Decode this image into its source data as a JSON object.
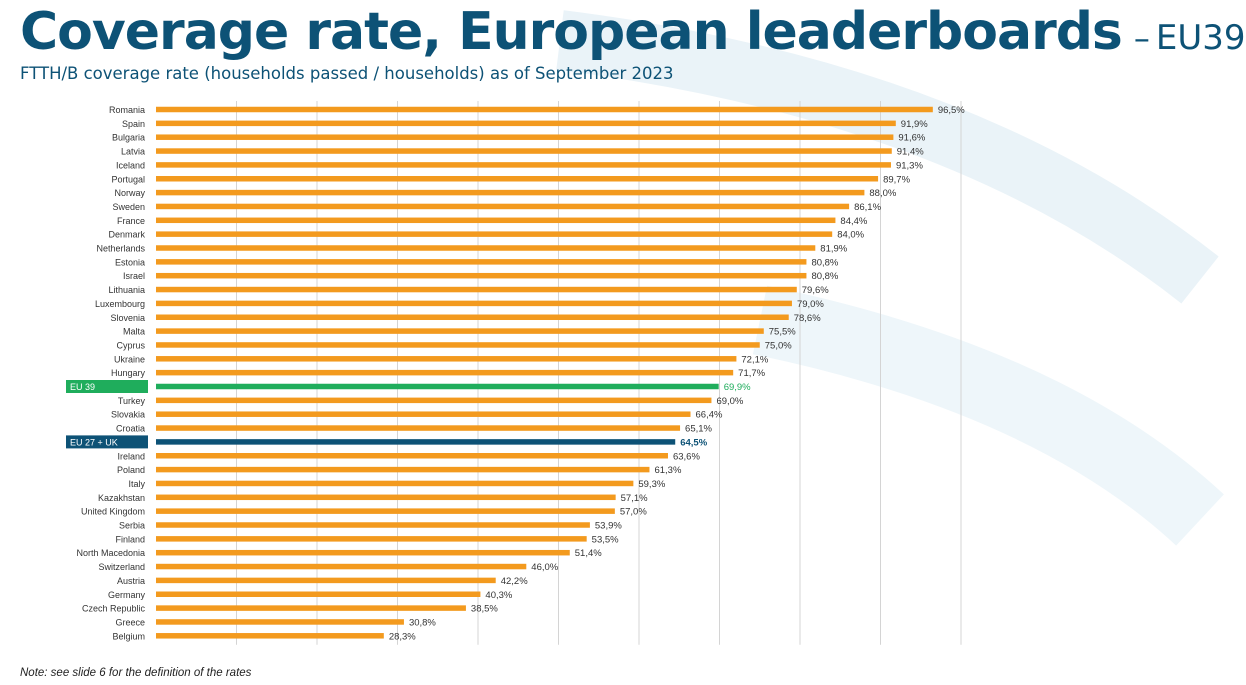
{
  "title": "Coverage rate, European leaderboards",
  "title_dash": "–",
  "title_suffix": "EU39",
  "subtitle": "FTTH/B coverage rate (households passed / households) as of September 2023",
  "note": "Note: see slide 6 for the definition of the rates",
  "colors": {
    "title": "#0d5276",
    "bar": "#f39a1e",
    "eu39": "#1fad5c",
    "eu27uk": "#0d5276",
    "grid": "#d4d4d4"
  },
  "chart_data": {
    "type": "bar",
    "orientation": "horizontal",
    "title": "Coverage rate, European leaderboards",
    "subtitle": "FTTH/B coverage rate (households passed / households) as of September 2023",
    "xlim": [
      0,
      100
    ],
    "grid": true,
    "categories": [
      "Romania",
      "Spain",
      "Bulgaria",
      "Latvia",
      "Iceland",
      "Portugal",
      "Norway",
      "Sweden",
      "France",
      "Denmark",
      "Netherlands",
      "Estonia",
      "Israel",
      "Lithuania",
      "Luxembourg",
      "Slovenia",
      "Malta",
      "Cyprus",
      "Ukraine",
      "Hungary",
      "EU 39",
      "Turkey",
      "Slovakia",
      "Croatia",
      "EU 27 + UK",
      "Ireland",
      "Poland",
      "Italy",
      "Kazakhstan",
      "United Kingdom",
      "Serbia",
      "Finland",
      "North Macedonia",
      "Switzerland",
      "Austria",
      "Germany",
      "Czech Republic",
      "Greece",
      "Belgium"
    ],
    "values": [
      96.5,
      91.9,
      91.6,
      91.4,
      91.3,
      89.7,
      88.0,
      86.1,
      84.4,
      84.0,
      81.9,
      80.8,
      80.8,
      79.6,
      79.0,
      78.6,
      75.5,
      75.0,
      72.1,
      71.7,
      69.9,
      69.0,
      66.4,
      65.1,
      64.5,
      63.6,
      61.3,
      59.3,
      57.1,
      57.0,
      53.9,
      53.5,
      51.4,
      46.0,
      42.2,
      40.3,
      38.5,
      30.8,
      28.3
    ],
    "value_labels": [
      "96,5%",
      "91,9%",
      "91,6%",
      "91,4%",
      "91,3%",
      "89,7%",
      "88,0%",
      "86,1%",
      "84,4%",
      "84,0%",
      "81,9%",
      "80,8%",
      "80,8%",
      "79,6%",
      "79,0%",
      "78,6%",
      "75,5%",
      "75,0%",
      "72,1%",
      "71,7%",
      "69,9%",
      "69,0%",
      "66,4%",
      "65,1%",
      "64,5%",
      "63,6%",
      "61,3%",
      "59,3%",
      "57,1%",
      "57,0%",
      "53,9%",
      "53,5%",
      "51,4%",
      "46,0%",
      "42,2%",
      "40,3%",
      "38,5%",
      "30,8%",
      "28,3%"
    ],
    "highlights": {
      "EU 39": "eu39",
      "EU 27 + UK": "eu27uk"
    }
  }
}
